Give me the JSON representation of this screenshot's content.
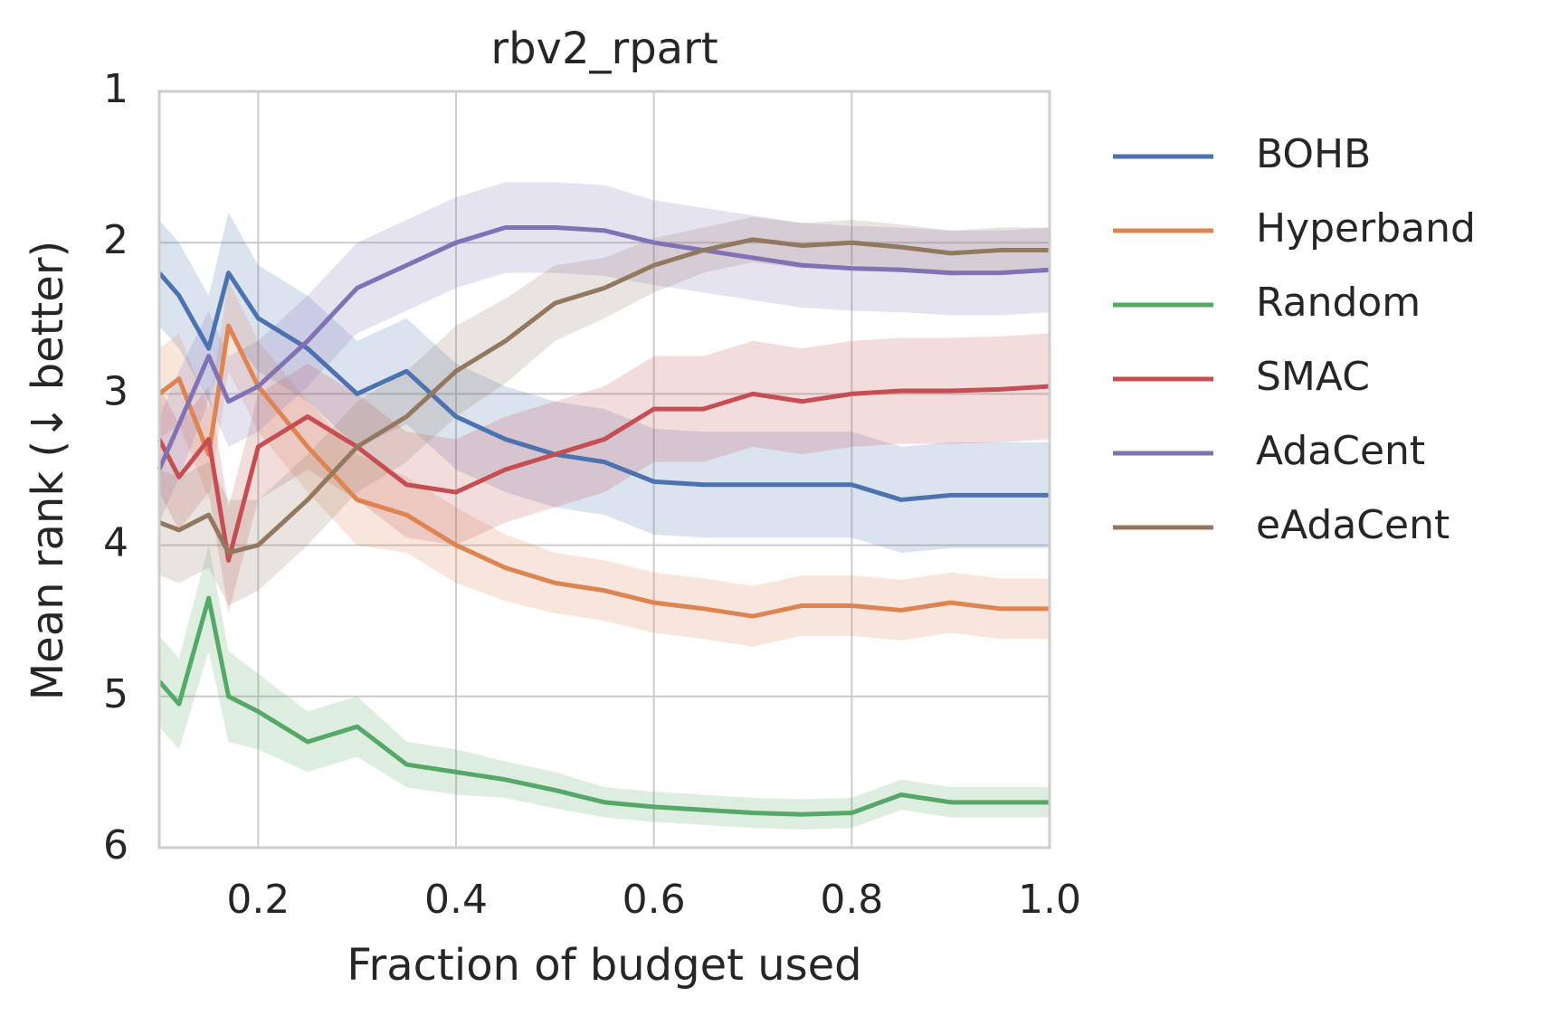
{
  "chart_data": {
    "type": "line",
    "title": "rbv2_rpart",
    "x_label": "Fraction of budget used",
    "y_label": "Mean rank (↓ better)",
    "x": [
      0.1,
      0.12,
      0.15,
      0.17,
      0.2,
      0.25,
      0.3,
      0.35,
      0.4,
      0.45,
      0.5,
      0.55,
      0.6,
      0.65,
      0.7,
      0.75,
      0.8,
      0.85,
      0.9,
      0.95,
      1.0
    ],
    "series": [
      {
        "name": "BOHB",
        "color": "#4c72b0",
        "values": [
          2.2,
          2.35,
          2.7,
          2.2,
          2.5,
          2.7,
          3.0,
          2.85,
          3.15,
          3.3,
          3.4,
          3.45,
          3.58,
          3.6,
          3.6,
          3.6,
          3.6,
          3.7,
          3.67,
          3.67,
          3.67
        ],
        "errors": [
          0.35,
          0.35,
          0.35,
          0.4,
          0.35,
          0.35,
          0.35,
          0.35,
          0.35,
          0.35,
          0.35,
          0.35,
          0.35,
          0.35,
          0.35,
          0.35,
          0.35,
          0.35,
          0.35,
          0.35,
          0.35
        ]
      },
      {
        "name": "Hyperband",
        "color": "#dd8452",
        "values": [
          3.0,
          2.9,
          3.4,
          2.55,
          2.95,
          3.35,
          3.7,
          3.8,
          4.0,
          4.15,
          4.25,
          4.3,
          4.38,
          4.42,
          4.47,
          4.4,
          4.4,
          4.43,
          4.38,
          4.42,
          4.42
        ],
        "errors": [
          0.3,
          0.3,
          0.3,
          0.3,
          0.3,
          0.3,
          0.3,
          0.25,
          0.25,
          0.22,
          0.2,
          0.2,
          0.2,
          0.2,
          0.2,
          0.2,
          0.2,
          0.2,
          0.2,
          0.2,
          0.2
        ]
      },
      {
        "name": "Random",
        "color": "#55a868",
        "values": [
          4.9,
          5.05,
          4.35,
          5.0,
          5.1,
          5.3,
          5.2,
          5.45,
          5.5,
          5.55,
          5.62,
          5.7,
          5.73,
          5.75,
          5.77,
          5.78,
          5.77,
          5.65,
          5.7,
          5.7,
          5.7
        ],
        "errors": [
          0.3,
          0.3,
          0.35,
          0.3,
          0.25,
          0.2,
          0.2,
          0.15,
          0.15,
          0.12,
          0.12,
          0.1,
          0.1,
          0.1,
          0.1,
          0.1,
          0.1,
          0.1,
          0.1,
          0.1,
          0.1
        ]
      },
      {
        "name": "SMAC",
        "color": "#c44e52",
        "values": [
          3.3,
          3.55,
          3.3,
          4.1,
          3.35,
          3.15,
          3.35,
          3.6,
          3.65,
          3.5,
          3.4,
          3.3,
          3.1,
          3.1,
          3.0,
          3.05,
          3.0,
          2.98,
          2.98,
          2.97,
          2.95
        ],
        "errors": [
          0.35,
          0.35,
          0.35,
          0.35,
          0.35,
          0.35,
          0.35,
          0.35,
          0.35,
          0.35,
          0.35,
          0.35,
          0.35,
          0.35,
          0.35,
          0.35,
          0.35,
          0.35,
          0.35,
          0.35,
          0.35
        ]
      },
      {
        "name": "AdaCent",
        "color": "#8172b3",
        "values": [
          3.5,
          3.2,
          2.75,
          3.05,
          2.95,
          2.65,
          2.3,
          2.15,
          2.0,
          1.9,
          1.9,
          1.92,
          2.0,
          2.05,
          2.1,
          2.15,
          2.17,
          2.18,
          2.2,
          2.2,
          2.18
        ],
        "errors": [
          0.35,
          0.35,
          0.3,
          0.3,
          0.3,
          0.3,
          0.3,
          0.3,
          0.3,
          0.3,
          0.3,
          0.3,
          0.28,
          0.28,
          0.28,
          0.28,
          0.28,
          0.28,
          0.28,
          0.28,
          0.28
        ]
      },
      {
        "name": "eAdaCent",
        "color": "#937860",
        "values": [
          3.85,
          3.9,
          3.8,
          4.05,
          4.0,
          3.7,
          3.35,
          3.15,
          2.85,
          2.65,
          2.4,
          2.3,
          2.15,
          2.05,
          1.98,
          2.02,
          2.0,
          2.03,
          2.07,
          2.05,
          2.05
        ],
        "errors": [
          0.35,
          0.35,
          0.35,
          0.35,
          0.3,
          0.3,
          0.3,
          0.3,
          0.3,
          0.28,
          0.25,
          0.2,
          0.18,
          0.15,
          0.15,
          0.15,
          0.15,
          0.15,
          0.15,
          0.15,
          0.15
        ]
      }
    ],
    "xlim": [
      0.1,
      1.0
    ],
    "xticks": [
      0.2,
      0.4,
      0.6,
      0.8,
      {
        "value": 1,
        "label": "1.0"
      }
    ],
    "ylim": [
      1,
      6
    ],
    "y_inverted": true,
    "yticks": [
      1,
      2,
      3,
      4,
      5,
      6
    ],
    "grid": true,
    "legend": "outside-right"
  }
}
